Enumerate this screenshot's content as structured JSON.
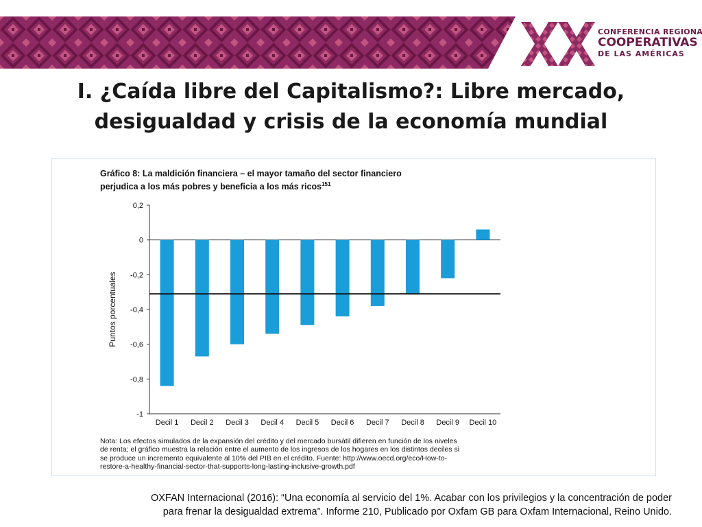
{
  "header": {
    "banner_colors": {
      "base": "#8e2a63",
      "dark": "#6a1746",
      "light": "#c2557f"
    },
    "logo": {
      "mark": "XX",
      "line1": "CONFERENCIA REGIONAL",
      "line2": "COOPERATIVAS",
      "line3": "DE LAS AMÉRICAS",
      "color": "#6d1b48"
    }
  },
  "slide": {
    "title_line1": "I. ¿Caída libre del Capitalismo?: Libre mercado,",
    "title_line2": "desigualdad y crisis de la economía mundial"
  },
  "chart_data": {
    "type": "bar",
    "title": "Gráfico 8: La maldición financiera – el mayor tamaño del sector financiero",
    "title_line2": "perjudica a los más pobres y beneficia a los más ricos",
    "title_superscript": "151",
    "categories": [
      "Decil 1",
      "Decil 2",
      "Decil 3",
      "Decil 4",
      "Decil 5",
      "Decil 6",
      "Decil 7",
      "Decil 8",
      "Decil 9",
      "Decil 10"
    ],
    "values": [
      -0.84,
      -0.67,
      -0.6,
      -0.54,
      -0.49,
      -0.44,
      -0.38,
      -0.31,
      -0.22,
      0.06
    ],
    "reference_line": -0.31,
    "ylabel": "Puntos porcentuales",
    "xlabel": "",
    "ylim": [
      -1,
      0.2
    ],
    "yticks": [
      0.2,
      0,
      -0.2,
      -0.4,
      -0.6,
      -0.8,
      -1
    ],
    "ytick_labels": [
      "0,2",
      "0",
      "-0,2",
      "-0,4",
      "-0,6",
      "-0,8",
      "-1"
    ],
    "bar_color": "#1a9dd9",
    "grid": false,
    "note_lines": [
      "Nota: Los efectos simulados de la expansión del crédito y del mercado bursátil difieren en función de los niveles",
      "de renta; el gráfico muestra la relación entre el aumento de los ingresos de los hogares en los distintos deciles si",
      "se produce un incremento equivalente al 10% del PIB en el crédito. Fuente: http://www.oecd.org/eco/How-to-",
      "restore-a-healthy-financial-sector-that-supports-long-lasting-inclusive-growth.pdf"
    ]
  },
  "source": {
    "line1": "OXFAN Internacional (2016): “Una economía al servicio del 1%. Acabar con los privilegios y la concentración de poder",
    "line2": "para frenar la desigualdad extrema”. Informe 210, Publicado por Oxfam GB para Oxfam Internacional, Reino Unido."
  }
}
